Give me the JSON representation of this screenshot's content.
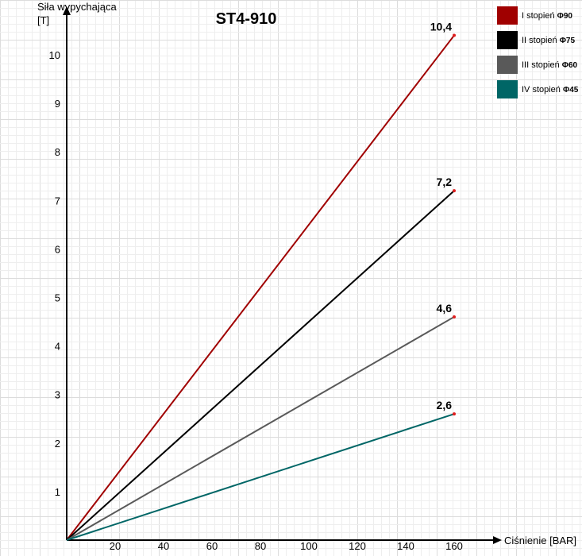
{
  "chart_data": {
    "type": "line",
    "title": "ST4-910",
    "xlabel": "Ciśnienie [BAR]",
    "ylabel_line1": "Siła wypychająca",
    "ylabel_line2": "[T]",
    "xlim": [
      0,
      160
    ],
    "ylim": [
      0,
      10.4
    ],
    "x_ticks": [
      20,
      40,
      60,
      80,
      100,
      120,
      140,
      160
    ],
    "y_ticks": [
      1,
      2,
      3,
      4,
      5,
      6,
      7,
      8,
      9,
      10
    ],
    "grid": true,
    "legend_position": "top-right",
    "series": [
      {
        "name": "I stopień",
        "symbol": "Φ90",
        "color": "#a00000",
        "x": [
          0,
          160
        ],
        "y": [
          0,
          10.4
        ],
        "end_label": "10,4"
      },
      {
        "name": "II stopień",
        "symbol": "Φ75",
        "color": "#000000",
        "x": [
          0,
          160
        ],
        "y": [
          0,
          7.2
        ],
        "end_label": "7,2"
      },
      {
        "name": "III stopień",
        "symbol": "Φ60",
        "color": "#595959",
        "x": [
          0,
          160
        ],
        "y": [
          0,
          4.6
        ],
        "end_label": "4,6"
      },
      {
        "name": "IV stopień",
        "symbol": "Φ45",
        "color": "#006666",
        "x": [
          0,
          160
        ],
        "y": [
          0,
          2.6
        ],
        "end_label": "2,6"
      }
    ],
    "endpoint_marker_color": "#e02020"
  }
}
